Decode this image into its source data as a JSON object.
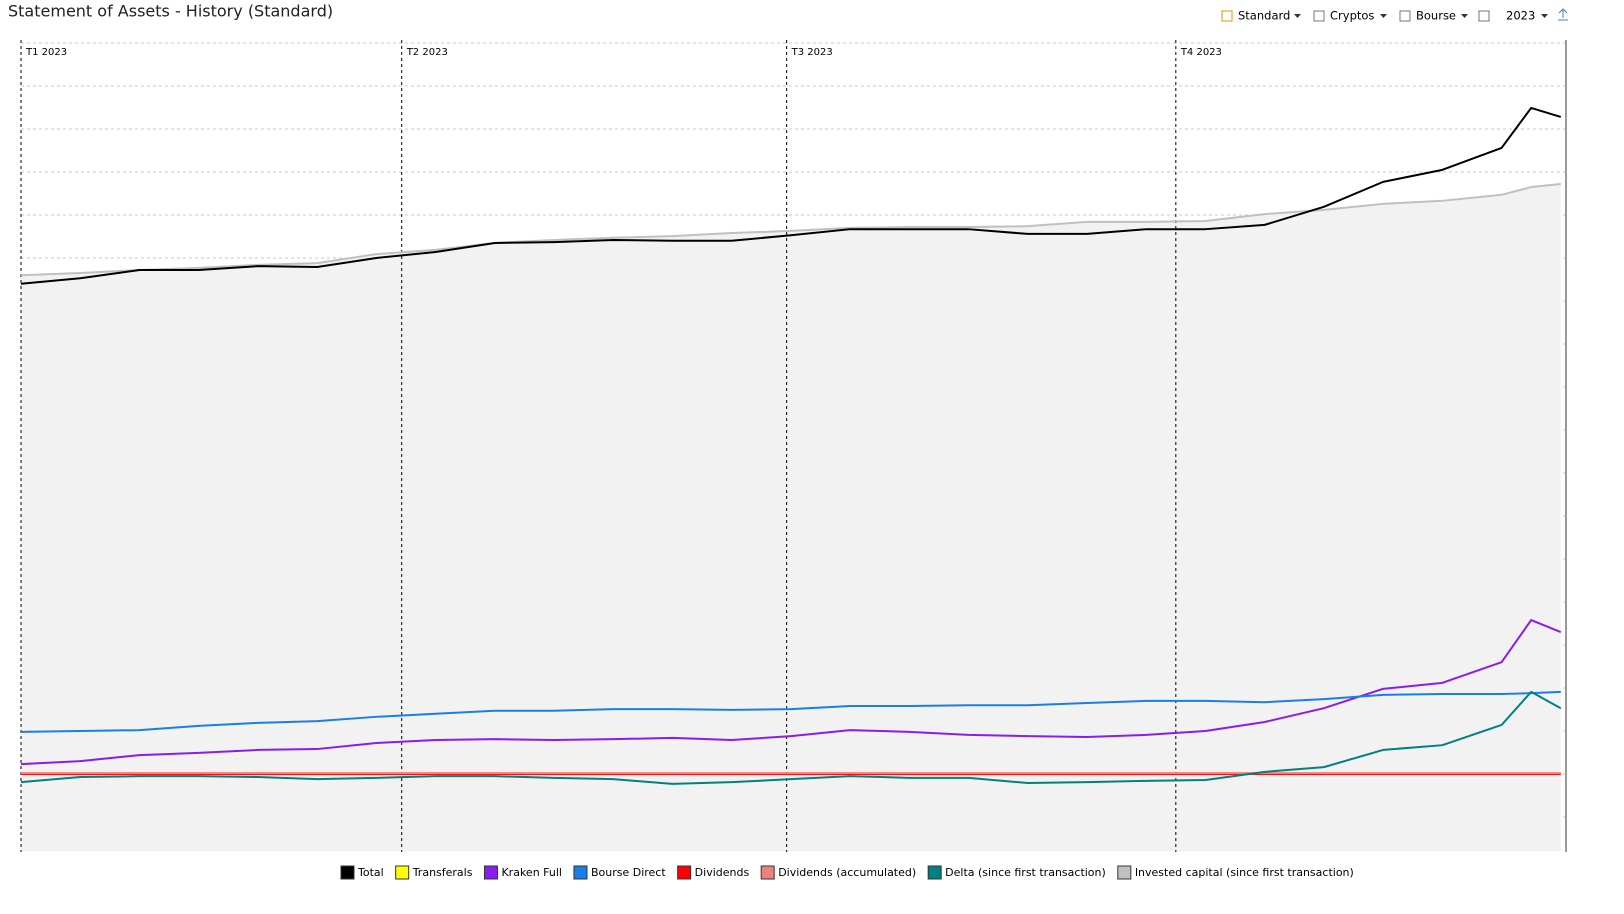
{
  "chart_data": {
    "type": "line",
    "title": "Statement of Assets - History (Standard)",
    "controls": [
      "Standard",
      "Cryptos",
      "Bourse",
      "2023"
    ],
    "x": [
      0,
      14,
      28,
      42,
      56,
      70,
      84,
      98,
      112,
      126,
      140,
      154,
      168,
      182,
      196,
      210,
      224,
      238,
      252,
      266,
      280,
      294,
      308,
      322,
      336,
      350,
      357,
      364
    ],
    "xlim": [
      0,
      365
    ],
    "xticks": [
      {
        "value": 0,
        "label": "T1 2023"
      },
      {
        "value": 90,
        "label": "T2 2023"
      },
      {
        "value": 181,
        "label": "T3 2023"
      },
      {
        "value": 273,
        "label": "T4 2023"
      }
    ],
    "ylim": [
      -1.8,
      17
    ],
    "yticks": [
      -1,
      0,
      1,
      2,
      3,
      4,
      5,
      6,
      7,
      8,
      9,
      10,
      11,
      12,
      13,
      14,
      15,
      16,
      17
    ],
    "grid": true,
    "legend": "bottom",
    "series": [
      {
        "name": "Total",
        "color": "#000000",
        "values": [
          11.4,
          11.53,
          11.72,
          11.72,
          11.81,
          11.79,
          12.0,
          12.14,
          12.35,
          12.37,
          12.42,
          12.4,
          12.4,
          12.53,
          12.67,
          12.67,
          12.67,
          12.56,
          12.56,
          12.67,
          12.67,
          12.77,
          13.19,
          13.77,
          14.05,
          14.56,
          15.49,
          15.28
        ]
      },
      {
        "name": "Transferals",
        "color": "#ffff00",
        "values": [
          0,
          0,
          0,
          0,
          0,
          0,
          0,
          0,
          0,
          0,
          0,
          0,
          0,
          0,
          0,
          0,
          0,
          0,
          0,
          0,
          0,
          0,
          0,
          0,
          0,
          0,
          0,
          0
        ]
      },
      {
        "name": "Kraken Full",
        "color": "#8a1cf0",
        "values": [
          0.23,
          0.3,
          0.44,
          0.49,
          0.56,
          0.58,
          0.72,
          0.79,
          0.81,
          0.79,
          0.81,
          0.84,
          0.79,
          0.88,
          1.02,
          0.98,
          0.91,
          0.88,
          0.86,
          0.91,
          1.0,
          1.21,
          1.53,
          1.98,
          2.12,
          2.6,
          3.58,
          3.3
        ]
      },
      {
        "name": "Bourse Direct",
        "color": "#1a7ee8",
        "values": [
          0.98,
          1.0,
          1.02,
          1.12,
          1.19,
          1.23,
          1.33,
          1.4,
          1.47,
          1.47,
          1.51,
          1.51,
          1.49,
          1.51,
          1.58,
          1.58,
          1.6,
          1.6,
          1.65,
          1.7,
          1.7,
          1.67,
          1.74,
          1.84,
          1.86,
          1.86,
          1.88,
          1.91
        ]
      },
      {
        "name": "Dividends",
        "color": "#ff0000",
        "values": [
          0,
          0,
          0,
          0,
          0,
          0,
          0,
          0,
          0,
          0,
          0,
          0,
          0,
          0,
          0,
          0,
          0,
          0,
          0,
          0,
          0,
          0,
          0,
          0,
          0,
          0,
          0,
          0
        ]
      },
      {
        "name": "Dividends (accumulated)",
        "color": "#f08080",
        "values": [
          0.02,
          0.02,
          0.02,
          0.02,
          0.02,
          0.02,
          0.02,
          0.02,
          0.02,
          0.02,
          0.02,
          0.02,
          0.02,
          0.02,
          0.02,
          0.02,
          0.02,
          0.02,
          0.02,
          0.02,
          0.02,
          0.02,
          0.02,
          0.02,
          0.02,
          0.02,
          0.02,
          0.02
        ]
      },
      {
        "name": "Delta (since first transaction)",
        "color": "#008080",
        "values": [
          -0.19,
          -0.07,
          -0.05,
          -0.05,
          -0.07,
          -0.12,
          -0.09,
          -0.05,
          -0.05,
          -0.09,
          -0.12,
          -0.23,
          -0.19,
          -0.12,
          -0.05,
          -0.09,
          -0.09,
          -0.21,
          -0.19,
          -0.16,
          -0.14,
          0.05,
          0.16,
          0.56,
          0.67,
          1.14,
          1.91,
          1.53
        ]
      },
      {
        "name": "Invested capital (since first transaction)",
        "color": "#c0c0c0",
        "area": true,
        "values": [
          11.6,
          11.65,
          11.72,
          11.77,
          11.84,
          11.88,
          12.09,
          12.19,
          12.35,
          12.42,
          12.47,
          12.51,
          12.58,
          12.63,
          12.7,
          12.72,
          12.72,
          12.74,
          12.84,
          12.84,
          12.86,
          13.02,
          13.12,
          13.26,
          13.33,
          13.47,
          13.65,
          13.72
        ]
      }
    ]
  }
}
